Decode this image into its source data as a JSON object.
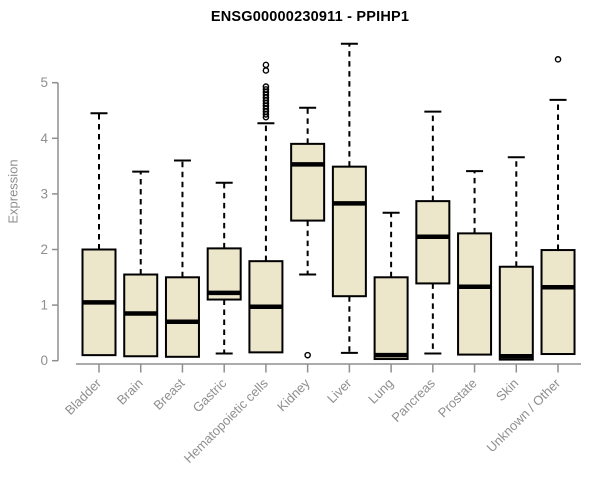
{
  "header": {
    "title": "ENSG00000230911 - PPIHP1"
  },
  "chart_data": {
    "type": "boxplot",
    "title": "ENSG00000230911 - PPIHP1",
    "xlabel": "",
    "ylabel": "Expression",
    "ylim": [
      0,
      5.8
    ],
    "yticks": [
      0,
      1,
      2,
      3,
      4,
      5
    ],
    "grid": false,
    "legend": null,
    "categories": [
      "Bladder",
      "Brain",
      "Breast",
      "Gastric",
      "Hematopoietic cells",
      "Kidney",
      "Liver",
      "Lung",
      "Pancreas",
      "Prostate",
      "Skin",
      "Unknown / Other"
    ],
    "series": [
      {
        "name": "Bladder",
        "whisker_low": 0.1,
        "q1": 0.1,
        "median": 1.05,
        "q3": 2.0,
        "whisker_high": 4.45,
        "outliers": []
      },
      {
        "name": "Brain",
        "whisker_low": 0.08,
        "q1": 0.08,
        "median": 0.85,
        "q3": 1.55,
        "whisker_high": 3.4,
        "outliers": []
      },
      {
        "name": "Breast",
        "whisker_low": 0.07,
        "q1": 0.07,
        "median": 0.7,
        "q3": 1.5,
        "whisker_high": 3.6,
        "outliers": []
      },
      {
        "name": "Gastric",
        "whisker_low": 0.13,
        "q1": 1.1,
        "median": 1.22,
        "q3": 2.02,
        "whisker_high": 3.2,
        "outliers": []
      },
      {
        "name": "Hematopoietic cells",
        "whisker_low": 0.15,
        "q1": 0.15,
        "median": 0.97,
        "q3": 1.79,
        "whisker_high": 4.27,
        "outliers": [
          4.38,
          4.43,
          4.48,
          4.53,
          4.58,
          4.63,
          4.68,
          4.73,
          4.78,
          4.83,
          4.88,
          4.93,
          5.22,
          5.32
        ]
      },
      {
        "name": "Kidney",
        "whisker_low": 1.55,
        "q1": 2.52,
        "median": 3.53,
        "q3": 3.9,
        "whisker_high": 4.55,
        "outliers": [
          0.1
        ]
      },
      {
        "name": "Liver",
        "whisker_low": 0.14,
        "q1": 1.16,
        "median": 2.83,
        "q3": 3.49,
        "whisker_high": 5.7,
        "outliers": []
      },
      {
        "name": "Lung",
        "whisker_low": 0.03,
        "q1": 0.03,
        "median": 0.1,
        "q3": 1.5,
        "whisker_high": 2.66,
        "outliers": []
      },
      {
        "name": "Pancreas",
        "whisker_low": 0.13,
        "q1": 1.39,
        "median": 2.23,
        "q3": 2.87,
        "whisker_high": 4.48,
        "outliers": []
      },
      {
        "name": "Prostate",
        "whisker_low": 0.11,
        "q1": 0.11,
        "median": 1.33,
        "q3": 2.29,
        "whisker_high": 3.41,
        "outliers": []
      },
      {
        "name": "Skin",
        "whisker_low": 0.02,
        "q1": 0.02,
        "median": 0.08,
        "q3": 1.69,
        "whisker_high": 3.66,
        "outliers": []
      },
      {
        "name": "Unknown / Other",
        "whisker_low": 0.12,
        "q1": 0.12,
        "median": 1.32,
        "q3": 1.99,
        "whisker_high": 4.69,
        "outliers": [
          5.42
        ]
      }
    ],
    "colors": {
      "box_fill": "#ECE6CB",
      "box_stroke": "#000000",
      "median": "#000000",
      "whisker": "#000000",
      "outlier": "#000000",
      "axis": "#8f8f8f",
      "tick_label": "#8f8f8f",
      "title": "#000000",
      "background": "#ffffff"
    }
  }
}
